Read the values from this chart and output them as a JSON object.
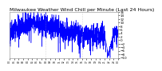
{
  "title": "Milwaukee Weather Wind Chill per Minute (Last 24 Hours)",
  "line_color": "#0000ff",
  "background_color": "#ffffff",
  "plot_bg_color": "#ffffff",
  "grid_color": "#aaaaaa",
  "y_min": -10,
  "y_max": 16,
  "n_points": 1440,
  "title_fontsize": 4.5,
  "tick_fontsize": 3.0,
  "line_width": 0.35,
  "seed": 42
}
